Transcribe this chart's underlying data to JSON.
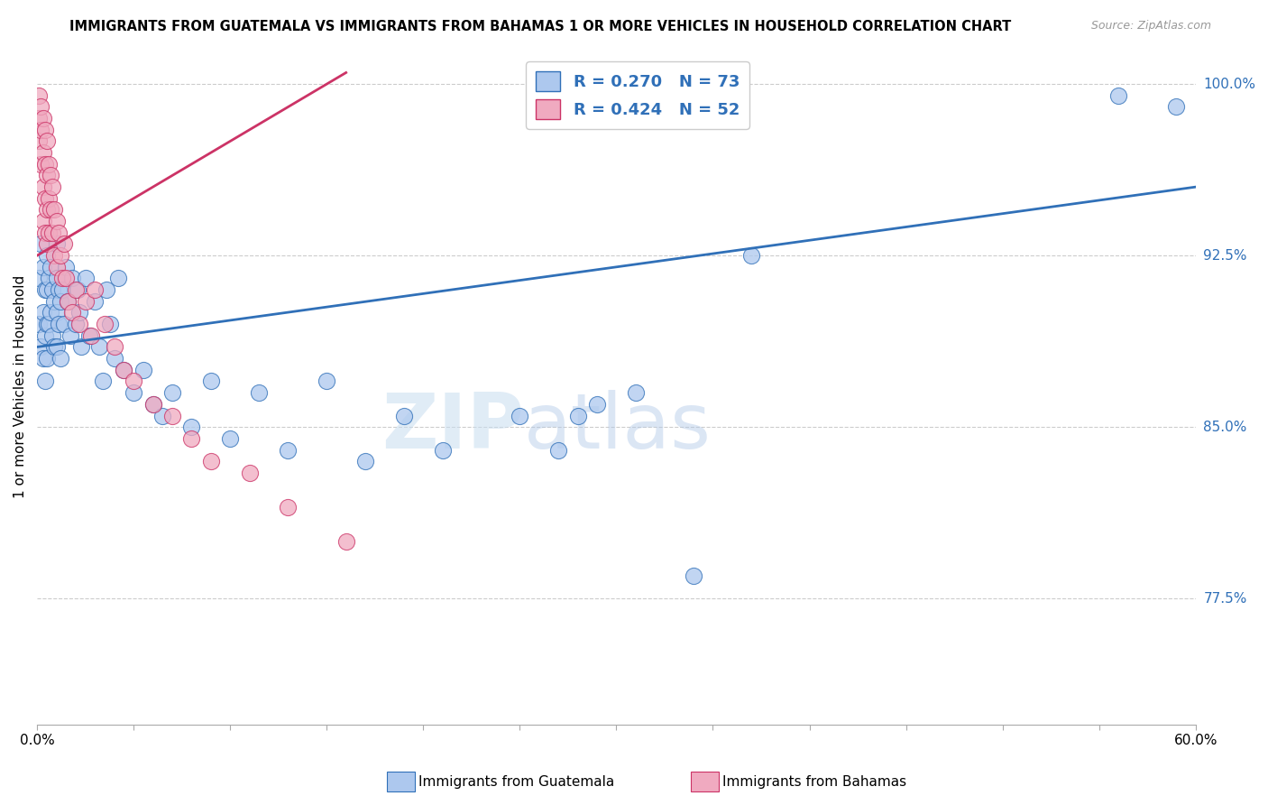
{
  "title": "IMMIGRANTS FROM GUATEMALA VS IMMIGRANTS FROM BAHAMAS 1 OR MORE VEHICLES IN HOUSEHOLD CORRELATION CHART",
  "source": "Source: ZipAtlas.com",
  "ylabel": "1 or more Vehicles in Household",
  "xmin": 0.0,
  "xmax": 0.6,
  "ymin": 72.0,
  "ymax": 101.5,
  "R_blue": 0.27,
  "N_blue": 73,
  "R_pink": 0.424,
  "N_pink": 52,
  "blue_color": "#adc8ee",
  "pink_color": "#f0aac0",
  "blue_line_color": "#3070b8",
  "pink_line_color": "#cc3366",
  "legend_label_blue": "Immigrants from Guatemala",
  "legend_label_pink": "Immigrants from Bahamas",
  "watermark_zip": "ZIP",
  "watermark_atlas": "atlas",
  "ytick_positions": [
    77.5,
    85.0,
    92.5,
    100.0
  ],
  "ytick_labels": [
    "77.5%",
    "85.0%",
    "92.5%",
    "100.0%"
  ],
  "guatemala_x": [
    0.001,
    0.001,
    0.002,
    0.002,
    0.003,
    0.003,
    0.003,
    0.004,
    0.004,
    0.004,
    0.005,
    0.005,
    0.005,
    0.005,
    0.006,
    0.006,
    0.007,
    0.007,
    0.008,
    0.008,
    0.009,
    0.009,
    0.01,
    0.01,
    0.01,
    0.01,
    0.011,
    0.011,
    0.012,
    0.012,
    0.013,
    0.014,
    0.015,
    0.016,
    0.017,
    0.018,
    0.02,
    0.021,
    0.022,
    0.023,
    0.025,
    0.027,
    0.03,
    0.032,
    0.034,
    0.036,
    0.038,
    0.04,
    0.042,
    0.045,
    0.05,
    0.055,
    0.06,
    0.065,
    0.07,
    0.08,
    0.09,
    0.1,
    0.115,
    0.13,
    0.15,
    0.17,
    0.19,
    0.21,
    0.25,
    0.27,
    0.28,
    0.29,
    0.31,
    0.34,
    0.37,
    0.56,
    0.59
  ],
  "guatemala_y": [
    91.5,
    89.5,
    93.0,
    88.5,
    92.0,
    90.0,
    88.0,
    91.0,
    89.0,
    87.0,
    92.5,
    91.0,
    89.5,
    88.0,
    91.5,
    89.5,
    92.0,
    90.0,
    91.0,
    89.0,
    90.5,
    88.5,
    93.0,
    91.5,
    90.0,
    88.5,
    91.0,
    89.5,
    90.5,
    88.0,
    91.0,
    89.5,
    92.0,
    90.5,
    89.0,
    91.5,
    89.5,
    91.0,
    90.0,
    88.5,
    91.5,
    89.0,
    90.5,
    88.5,
    87.0,
    91.0,
    89.5,
    88.0,
    91.5,
    87.5,
    86.5,
    87.5,
    86.0,
    85.5,
    86.5,
    85.0,
    87.0,
    84.5,
    86.5,
    84.0,
    87.0,
    83.5,
    85.5,
    84.0,
    85.5,
    84.0,
    85.5,
    86.0,
    86.5,
    78.5,
    92.5,
    99.5,
    99.0
  ],
  "bahamas_x": [
    0.001,
    0.001,
    0.001,
    0.002,
    0.002,
    0.002,
    0.003,
    0.003,
    0.003,
    0.003,
    0.004,
    0.004,
    0.004,
    0.004,
    0.005,
    0.005,
    0.005,
    0.005,
    0.006,
    0.006,
    0.006,
    0.007,
    0.007,
    0.008,
    0.008,
    0.009,
    0.009,
    0.01,
    0.01,
    0.011,
    0.012,
    0.013,
    0.014,
    0.015,
    0.016,
    0.018,
    0.02,
    0.022,
    0.025,
    0.028,
    0.03,
    0.035,
    0.04,
    0.045,
    0.05,
    0.06,
    0.07,
    0.08,
    0.09,
    0.11,
    0.13,
    0.16
  ],
  "bahamas_y": [
    99.5,
    98.5,
    97.5,
    99.0,
    98.0,
    96.5,
    98.5,
    97.0,
    95.5,
    94.0,
    98.0,
    96.5,
    95.0,
    93.5,
    97.5,
    96.0,
    94.5,
    93.0,
    96.5,
    95.0,
    93.5,
    96.0,
    94.5,
    95.5,
    93.5,
    94.5,
    92.5,
    94.0,
    92.0,
    93.5,
    92.5,
    91.5,
    93.0,
    91.5,
    90.5,
    90.0,
    91.0,
    89.5,
    90.5,
    89.0,
    91.0,
    89.5,
    88.5,
    87.5,
    87.0,
    86.0,
    85.5,
    84.5,
    83.5,
    83.0,
    81.5,
    80.0
  ],
  "blue_trendline_x": [
    0.0,
    0.6
  ],
  "blue_trendline_y": [
    88.5,
    95.5
  ],
  "pink_trendline_x": [
    0.0,
    0.16
  ],
  "pink_trendline_y": [
    92.5,
    100.5
  ]
}
